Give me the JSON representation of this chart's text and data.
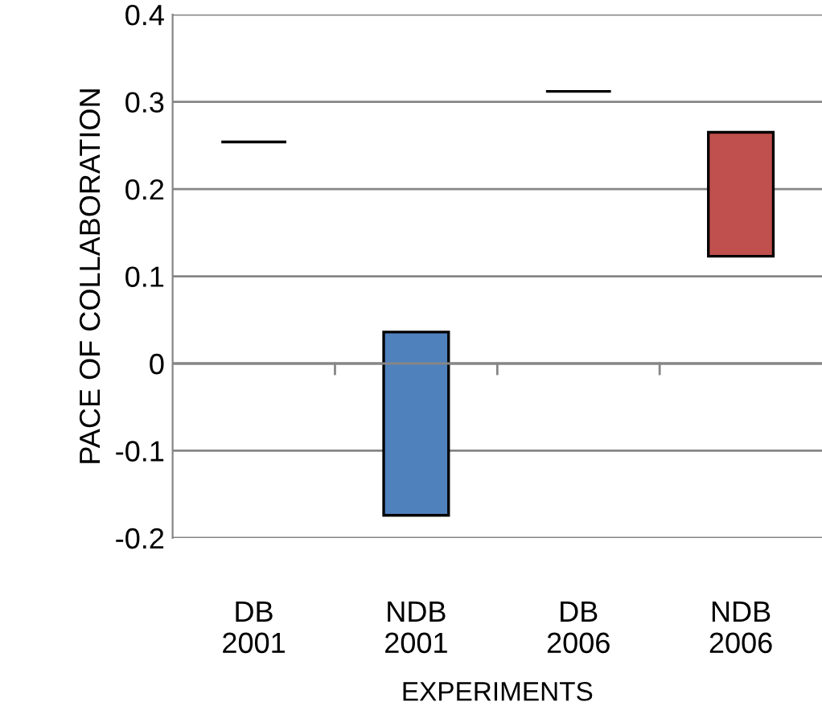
{
  "chart_data": {
    "type": "bar",
    "xlabel": "EXPERIMENTS",
    "ylabel": "PACE OF COLLABORATION",
    "categories": [
      "DB\n2001",
      "NDB\n2001",
      "DB\n2006",
      "NDB\n2006"
    ],
    "base": [
      0.254,
      -0.174,
      0.312,
      0.123
    ],
    "values": [
      0,
      0.21,
      0,
      0.142
    ],
    "colors": [
      "#000000",
      "#4f81bd",
      "#000000",
      "#c0504d"
    ],
    "ylim": [
      -0.2,
      0.4
    ],
    "yticks": [
      -0.2,
      -0.1,
      0,
      0.1,
      0.2,
      0.3,
      0.4
    ],
    "grid": "y",
    "legend": false
  }
}
